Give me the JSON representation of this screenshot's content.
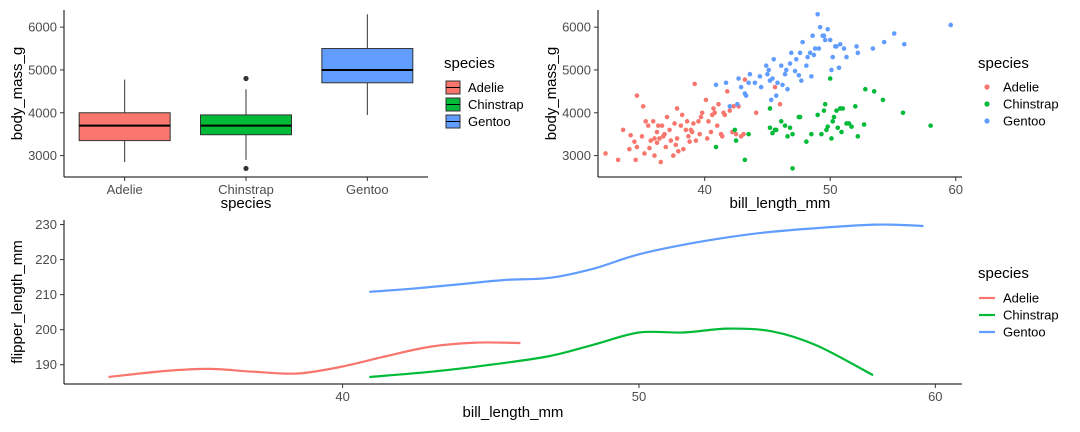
{
  "chart_data": [
    {
      "type": "box",
      "xlabel": "species",
      "ylabel": "body_mass_g",
      "categories": [
        "Adelie",
        "Chinstrap",
        "Gentoo"
      ],
      "yticks": [
        3000,
        4000,
        5000,
        6000
      ],
      "ylim": [
        2500,
        6400
      ],
      "legend": {
        "title": "species",
        "placement": "right"
      },
      "boxes": [
        {
          "category": "Adelie",
          "min": 2850,
          "q1": 3350,
          "median": 3700,
          "q3": 4000,
          "max": 4775,
          "outliers": [],
          "color": "#F8766D"
        },
        {
          "category": "Chinstrap",
          "min": 2900,
          "q1": 3487,
          "median": 3700,
          "q3": 3950,
          "max": 4550,
          "outliers": [
            2700,
            4800
          ],
          "color": "#00BA38"
        },
        {
          "category": "Gentoo",
          "min": 3950,
          "q1": 4700,
          "median": 5000,
          "q3": 5500,
          "max": 6300,
          "outliers": [],
          "color": "#619CFF"
        }
      ]
    },
    {
      "type": "scatter",
      "xlabel": "bill_length_mm",
      "ylabel": "body_mass_g",
      "xticks": [
        40,
        50,
        60
      ],
      "yticks": [
        3000,
        4000,
        5000,
        6000
      ],
      "xlim": [
        31.5,
        60.5
      ],
      "ylim": [
        2500,
        6400
      ],
      "legend": {
        "title": "species",
        "placement": "right"
      },
      "series": [
        {
          "name": "Adelie",
          "color": "#F8766D",
          "points": [
            [
              32.1,
              3050
            ],
            [
              33.1,
              2900
            ],
            [
              33.5,
              3600
            ],
            [
              34.0,
              3150
            ],
            [
              34.1,
              3475
            ],
            [
              34.4,
              3325
            ],
            [
              34.5,
              2900
            ],
            [
              34.6,
              3200
            ],
            [
              34.6,
              4400
            ],
            [
              35.0,
              3450
            ],
            [
              35.1,
              4150
            ],
            [
              35.2,
              3050
            ],
            [
              35.3,
              3800
            ],
            [
              35.5,
              3700
            ],
            [
              35.6,
              3175
            ],
            [
              35.7,
              3350
            ],
            [
              35.9,
              3800
            ],
            [
              36.0,
              3000
            ],
            [
              36.0,
              3400
            ],
            [
              36.2,
              3300
            ],
            [
              36.2,
              3550
            ],
            [
              36.3,
              3700
            ],
            [
              36.4,
              3400
            ],
            [
              36.5,
              2850
            ],
            [
              36.6,
              3700
            ],
            [
              36.7,
              3450
            ],
            [
              36.8,
              3500
            ],
            [
              36.9,
              3200
            ],
            [
              37.0,
              3900
            ],
            [
              37.2,
              3600
            ],
            [
              37.3,
              3350
            ],
            [
              37.5,
              3000
            ],
            [
              37.6,
              3750
            ],
            [
              37.7,
              3250
            ],
            [
              37.8,
              3400
            ],
            [
              37.8,
              4100
            ],
            [
              37.9,
              3100
            ],
            [
              38.1,
              3700
            ],
            [
              38.2,
              3950
            ],
            [
              38.3,
              3150
            ],
            [
              38.5,
              3600
            ],
            [
              38.6,
              3800
            ],
            [
              38.7,
              3450
            ],
            [
              38.8,
              3325
            ],
            [
              38.9,
              3600
            ],
            [
              39.0,
              3550
            ],
            [
              39.1,
              3750
            ],
            [
              39.2,
              4675
            ],
            [
              39.3,
              3350
            ],
            [
              39.5,
              3800
            ],
            [
              39.6,
              3500
            ],
            [
              39.7,
              3900
            ],
            [
              39.8,
              4000
            ],
            [
              40.1,
              4300
            ],
            [
              40.2,
              3400
            ],
            [
              40.3,
              3800
            ],
            [
              40.5,
              3550
            ],
            [
              40.6,
              3950
            ],
            [
              40.7,
              4100
            ],
            [
              40.8,
              4000
            ],
            [
              41.0,
              3700
            ],
            [
              41.1,
              4200
            ],
            [
              41.3,
              3500
            ],
            [
              41.4,
              3450
            ],
            [
              41.5,
              4000
            ],
            [
              41.6,
              3950
            ],
            [
              41.8,
              4500
            ],
            [
              42.0,
              4050
            ],
            [
              42.2,
              3550
            ],
            [
              42.3,
              4150
            ],
            [
              42.5,
              3500
            ],
            [
              42.7,
              4150
            ],
            [
              42.9,
              3450
            ],
            [
              43.1,
              3500
            ],
            [
              43.2,
              4775
            ],
            [
              44.1,
              4000
            ],
            [
              45.6,
              4600
            ],
            [
              46.0,
              4200
            ]
          ]
        },
        {
          "name": "Chinstrap",
          "color": "#00BA38",
          "points": [
            [
              40.9,
              3200
            ],
            [
              42.4,
              3600
            ],
            [
              42.5,
              3350
            ],
            [
              43.2,
              2900
            ],
            [
              43.5,
              3500
            ],
            [
              45.2,
              3650
            ],
            [
              45.4,
              3525
            ],
            [
              45.6,
              3600
            ],
            [
              45.7,
              3600
            ],
            [
              46.1,
              3800
            ],
            [
              46.4,
              3700
            ],
            [
              46.6,
              3450
            ],
            [
              46.8,
              3650
            ],
            [
              47.0,
              3500
            ],
            [
              47.5,
              3900
            ],
            [
              47.6,
              3900
            ],
            [
              48.1,
              3325
            ],
            [
              48.5,
              3500
            ],
            [
              49.0,
              3950
            ],
            [
              49.3,
              3500
            ],
            [
              49.5,
              4050
            ],
            [
              49.7,
              3600
            ],
            [
              49.8,
              3675
            ],
            [
              50.1,
              3400
            ],
            [
              50.2,
              3800
            ],
            [
              50.3,
              3900
            ],
            [
              50.5,
              4050
            ],
            [
              50.6,
              3650
            ],
            [
              50.8,
              4100
            ],
            [
              50.9,
              3550
            ],
            [
              51.0,
              4100
            ],
            [
              51.3,
              3750
            ],
            [
              51.5,
              3750
            ],
            [
              51.7,
              3675
            ],
            [
              52.0,
              4150
            ],
            [
              52.2,
              3450
            ],
            [
              52.7,
              3725
            ],
            [
              52.8,
              4550
            ],
            [
              53.5,
              4500
            ],
            [
              54.2,
              4300
            ],
            [
              55.8,
              4000
            ],
            [
              58.0,
              3700
            ],
            [
              45.2,
              4100
            ],
            [
              47.0,
              2700
            ],
            [
              50.0,
              4800
            ],
            [
              49.6,
              4200
            ]
          ]
        },
        {
          "name": "Gentoo",
          "color": "#619CFF",
          "points": [
            [
              40.9,
              4650
            ],
            [
              41.7,
              4700
            ],
            [
              42.0,
              4150
            ],
            [
              42.6,
              4200
            ],
            [
              42.7,
              4800
            ],
            [
              42.9,
              4600
            ],
            [
              43.2,
              4450
            ],
            [
              43.3,
              4400
            ],
            [
              43.5,
              4700
            ],
            [
              43.6,
              4900
            ],
            [
              44.0,
              4700
            ],
            [
              44.4,
              4850
            ],
            [
              44.5,
              4600
            ],
            [
              44.9,
              5100
            ],
            [
              45.0,
              4900
            ],
            [
              45.1,
              5000
            ],
            [
              45.2,
              4750
            ],
            [
              45.3,
              4300
            ],
            [
              45.4,
              4800
            ],
            [
              45.5,
              5250
            ],
            [
              45.7,
              4400
            ],
            [
              45.8,
              4700
            ],
            [
              46.1,
              5100
            ],
            [
              46.2,
              4650
            ],
            [
              46.4,
              4900
            ],
            [
              46.5,
              5000
            ],
            [
              46.6,
              4550
            ],
            [
              46.8,
              5150
            ],
            [
              46.9,
              5400
            ],
            [
              47.2,
              4975
            ],
            [
              47.3,
              5250
            ],
            [
              47.5,
              4875
            ],
            [
              47.6,
              5400
            ],
            [
              47.7,
              4750
            ],
            [
              47.8,
              5650
            ],
            [
              48.1,
              5100
            ],
            [
              48.2,
              5300
            ],
            [
              48.4,
              5400
            ],
            [
              48.5,
              4850
            ],
            [
              48.6,
              5800
            ],
            [
              48.7,
              5350
            ],
            [
              48.8,
              5500
            ],
            [
              49.0,
              6300
            ],
            [
              49.1,
              5500
            ],
            [
              49.2,
              6000
            ],
            [
              49.4,
              5800
            ],
            [
              49.5,
              5800
            ],
            [
              49.6,
              5700
            ],
            [
              49.8,
              5950
            ],
            [
              50.0,
              5700
            ],
            [
              50.1,
              5000
            ],
            [
              50.2,
              5300
            ],
            [
              50.4,
              5550
            ],
            [
              50.5,
              5550
            ],
            [
              50.7,
              5050
            ],
            [
              50.8,
              5600
            ],
            [
              51.1,
              5500
            ],
            [
              51.3,
              5300
            ],
            [
              52.1,
              5550
            ],
            [
              52.2,
              5400
            ],
            [
              53.4,
              5500
            ],
            [
              54.3,
              5650
            ],
            [
              55.1,
              5850
            ],
            [
              55.9,
              5600
            ],
            [
              59.6,
              6050
            ]
          ]
        }
      ]
    },
    {
      "type": "line",
      "xlabel": "bill_length_mm",
      "ylabel": "flipper_length_mm",
      "xticks": [
        40,
        50,
        60
      ],
      "yticks": [
        190,
        200,
        210,
        220,
        230
      ],
      "xlim": [
        30.6,
        60.9
      ],
      "ylim": [
        184.5,
        231.3
      ],
      "legend": {
        "title": "species",
        "placement": "right"
      },
      "series": [
        {
          "name": "Adelie",
          "color": "#F8766D",
          "points": [
            [
              32.1,
              186.5
            ],
            [
              34,
              188.2
            ],
            [
              35.5,
              188.8
            ],
            [
              37,
              188.0
            ],
            [
              38.5,
              187.5
            ],
            [
              40,
              189.5
            ],
            [
              41.5,
              192.5
            ],
            [
              43,
              195.2
            ],
            [
              44.5,
              196.3
            ],
            [
              46,
              196.2
            ]
          ]
        },
        {
          "name": "Chinstrap",
          "color": "#00BA38",
          "points": [
            [
              40.9,
              186.5
            ],
            [
              43,
              188.0
            ],
            [
              45,
              190.0
            ],
            [
              47,
              192.5
            ],
            [
              48.5,
              195.8
            ],
            [
              50,
              199.2
            ],
            [
              51.5,
              199.2
            ],
            [
              53,
              200.3
            ],
            [
              54.5,
              199.5
            ],
            [
              56,
              195.5
            ],
            [
              57.9,
              187.0
            ]
          ]
        },
        {
          "name": "Gentoo",
          "color": "#619CFF",
          "points": [
            [
              40.9,
              210.8
            ],
            [
              42.5,
              211.8
            ],
            [
              44,
              213.0
            ],
            [
              45.5,
              214.2
            ],
            [
              47,
              214.8
            ],
            [
              48.5,
              217.5
            ],
            [
              50,
              221.5
            ],
            [
              52,
              225.0
            ],
            [
              54,
              227.5
            ],
            [
              56,
              229.0
            ],
            [
              58,
              230.0
            ],
            [
              59.6,
              229.6
            ]
          ]
        }
      ]
    }
  ]
}
